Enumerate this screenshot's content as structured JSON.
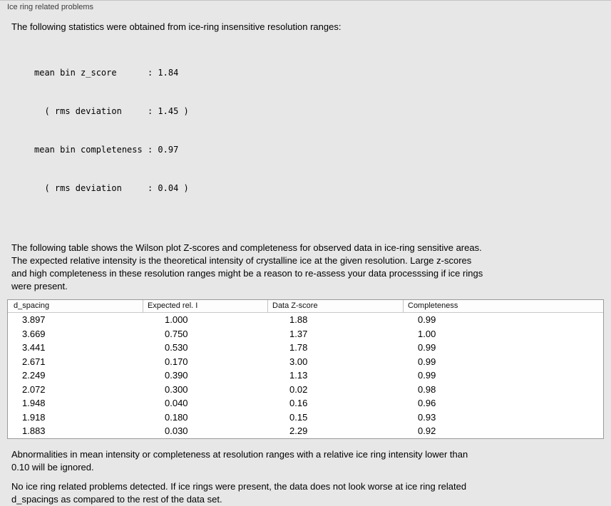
{
  "panel": {
    "title": "Ice ring related problems"
  },
  "intro": "The following statistics were obtained from ice-ring insensitive resolution ranges:",
  "stats": {
    "lines": [
      "mean bin z_score      : 1.84",
      "  ( rms deviation     : 1.45 )",
      "mean bin completeness : 0.97",
      "  ( rms deviation     : 0.04 )"
    ]
  },
  "description": {
    "lines": [
      "The following table shows the Wilson plot Z-scores and completeness for observed data in ice-ring sensitive areas.",
      "The expected relative intensity is the theoretical intensity of crystalline ice at the given resolution. Large z-scores",
      "and high completeness in these resolution ranges might be a reason to re-assess your data processsing if ice rings",
      "were present."
    ]
  },
  "table": {
    "columns": [
      "d_spacing",
      "Expected rel. I",
      "Data Z-score",
      "Completeness"
    ],
    "rows": [
      [
        "3.897",
        "1.000",
        "1.88",
        "0.99"
      ],
      [
        "3.669",
        "0.750",
        "1.37",
        "1.00"
      ],
      [
        "3.441",
        "0.530",
        "1.78",
        "0.99"
      ],
      [
        "2.671",
        "0.170",
        "3.00",
        "0.99"
      ],
      [
        "2.249",
        "0.390",
        "1.13",
        "0.99"
      ],
      [
        "2.072",
        "0.300",
        "0.02",
        "0.98"
      ],
      [
        "1.948",
        "0.040",
        "0.16",
        "0.96"
      ],
      [
        "1.918",
        "0.180",
        "0.15",
        "0.93"
      ],
      [
        "1.883",
        "0.030",
        "2.29",
        "0.92"
      ]
    ]
  },
  "note": {
    "lines": [
      "Abnormalities in mean intensity or completeness at resolution ranges with a relative ice ring intensity lower than",
      "0.10 will be ignored."
    ]
  },
  "conclusion": {
    "lines": [
      "No ice ring related problems detected. If ice rings were present, the data does not look worse at ice ring related",
      "d_spacings as compared to the rest of the data set."
    ]
  }
}
